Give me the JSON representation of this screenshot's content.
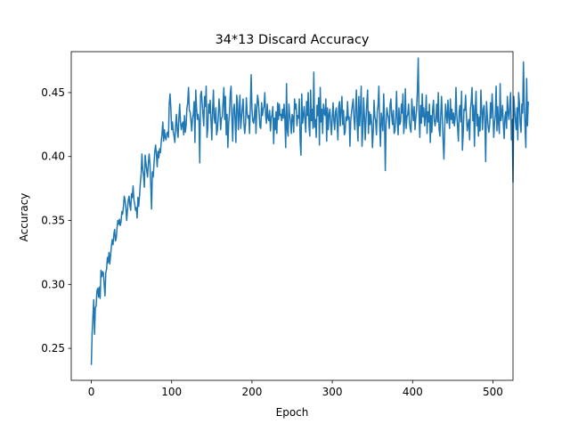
{
  "chart_data": {
    "type": "line",
    "title": "34*13 Discard Accuracy",
    "xlabel": "Epoch",
    "ylabel": "Accuracy",
    "xlim": [
      -25,
      525
    ],
    "ylim": [
      0.225,
      0.482
    ],
    "xticks": [
      "0",
      "100",
      "200",
      "300",
      "400",
      "500"
    ],
    "yticks": [
      "0.25",
      "0.30",
      "0.35",
      "0.40",
      "0.45"
    ],
    "grid": false,
    "legend": "none",
    "line_color": "#1f77b4",
    "series": [
      {
        "x_start": 0,
        "x_step": 1,
        "values": [
          0.237,
          0.262,
          0.275,
          0.288,
          0.261,
          0.282,
          0.283,
          0.295,
          0.297,
          0.29,
          0.298,
          0.289,
          0.311,
          0.306,
          0.31,
          0.309,
          0.3,
          0.291,
          0.309,
          0.312,
          0.321,
          0.317,
          0.325,
          0.316,
          0.323,
          0.33,
          0.335,
          0.331,
          0.339,
          0.343,
          0.334,
          0.336,
          0.344,
          0.35,
          0.347,
          0.351,
          0.346,
          0.349,
          0.357,
          0.355,
          0.361,
          0.369,
          0.366,
          0.36,
          0.35,
          0.358,
          0.366,
          0.369,
          0.362,
          0.358,
          0.371,
          0.368,
          0.377,
          0.366,
          0.363,
          0.358,
          0.36,
          0.352,
          0.368,
          0.361,
          0.369,
          0.379,
          0.386,
          0.402,
          0.39,
          0.385,
          0.376,
          0.401,
          0.395,
          0.389,
          0.384,
          0.395,
          0.402,
          0.394,
          0.378,
          0.359,
          0.388,
          0.384,
          0.394,
          0.404,
          0.409,
          0.402,
          0.392,
          0.404,
          0.399,
          0.406,
          0.403,
          0.411,
          0.418,
          0.427,
          0.412,
          0.421,
          0.415,
          0.413,
          0.418,
          0.419,
          0.415,
          0.441,
          0.449,
          0.438,
          0.421,
          0.427,
          0.419,
          0.416,
          0.411,
          0.425,
          0.433,
          0.42,
          0.415,
          0.43,
          0.441,
          0.427,
          0.421,
          0.425,
          0.427,
          0.417,
          0.432,
          0.419,
          0.424,
          0.438,
          0.442,
          0.454,
          0.436,
          0.435,
          0.428,
          0.42,
          0.43,
          0.433,
          0.443,
          0.411,
          0.452,
          0.438,
          0.429,
          0.433,
          0.428,
          0.395,
          0.448,
          0.451,
          0.442,
          0.433,
          0.424,
          0.447,
          0.439,
          0.455,
          0.415,
          0.422,
          0.441,
          0.434,
          0.444,
          0.428,
          0.413,
          0.436,
          0.452,
          0.43,
          0.426,
          0.438,
          0.417,
          0.421,
          0.43,
          0.445,
          0.437,
          0.421,
          0.43,
          0.431,
          0.442,
          0.454,
          0.429,
          0.447,
          0.417,
          0.433,
          0.407,
          0.426,
          0.434,
          0.449,
          0.455,
          0.43,
          0.412,
          0.437,
          0.441,
          0.429,
          0.411,
          0.448,
          0.442,
          0.421,
          0.434,
          0.448,
          0.422,
          0.43,
          0.438,
          0.445,
          0.426,
          0.418,
          0.425,
          0.446,
          0.434,
          0.43,
          0.432,
          0.418,
          0.439,
          0.464,
          0.437,
          0.428,
          0.426,
          0.431,
          0.441,
          0.418,
          0.437,
          0.448,
          0.443,
          0.433,
          0.423,
          0.422,
          0.442,
          0.432,
          0.437,
          0.439,
          0.45,
          0.432,
          0.426,
          0.441,
          0.43,
          0.428,
          0.436,
          0.42,
          0.43,
          0.433,
          0.439,
          0.41,
          0.43,
          0.421,
          0.435,
          0.418,
          0.442,
          0.429,
          0.441,
          0.432,
          0.433,
          0.428,
          0.437,
          0.43,
          0.441,
          0.429,
          0.407,
          0.457,
          0.421,
          0.416,
          0.441,
          0.432,
          0.428,
          0.418,
          0.433,
          0.431,
          0.419,
          0.445,
          0.437,
          0.441,
          0.424,
          0.432,
          0.43,
          0.445,
          0.412,
          0.401,
          0.449,
          0.426,
          0.432,
          0.439,
          0.428,
          0.419,
          0.443,
          0.432,
          0.45,
          0.424,
          0.416,
          0.452,
          0.428,
          0.437,
          0.422,
          0.466,
          0.423,
          0.429,
          0.415,
          0.44,
          0.432,
          0.446,
          0.409,
          0.454,
          0.427,
          0.437,
          0.418,
          0.441,
          0.434,
          0.432,
          0.445,
          0.412,
          0.438,
          0.421,
          0.433,
          0.437,
          0.426,
          0.417,
          0.431,
          0.442,
          0.428,
          0.421,
          0.435,
          0.438,
          0.426,
          0.413,
          0.439,
          0.443,
          0.424,
          0.436,
          0.447,
          0.425,
          0.436,
          0.417,
          0.419,
          0.431,
          0.428,
          0.443,
          0.429,
          0.431,
          0.408,
          0.428,
          0.435,
          0.44,
          0.445,
          0.43,
          0.421,
          0.437,
          0.452,
          0.425,
          0.412,
          0.447,
          0.424,
          0.436,
          0.455,
          0.408,
          0.42,
          0.446,
          0.432,
          0.413,
          0.429,
          0.442,
          0.452,
          0.418,
          0.435,
          0.425,
          0.433,
          0.426,
          0.407,
          0.42,
          0.444,
          0.431,
          0.428,
          0.417,
          0.435,
          0.44,
          0.455,
          0.424,
          0.408,
          0.434,
          0.428,
          0.42,
          0.449,
          0.429,
          0.389,
          0.425,
          0.438,
          0.433,
          0.43,
          0.422,
          0.441,
          0.445,
          0.432,
          0.425,
          0.436,
          0.418,
          0.42,
          0.43,
          0.451,
          0.428,
          0.417,
          0.438,
          0.425,
          0.427,
          0.441,
          0.434,
          0.449,
          0.418,
          0.427,
          0.453,
          0.422,
          0.431,
          0.433,
          0.441,
          0.428,
          0.422,
          0.419,
          0.445,
          0.435,
          0.428,
          0.439,
          0.421,
          0.43,
          0.437,
          0.452,
          0.477,
          0.433,
          0.415,
          0.44,
          0.426,
          0.449,
          0.431,
          0.438,
          0.424,
          0.432,
          0.448,
          0.418,
          0.435,
          0.427,
          0.441,
          0.411,
          0.432,
          0.419,
          0.437,
          0.444,
          0.428,
          0.424,
          0.43,
          0.441,
          0.427,
          0.45,
          0.421,
          0.416,
          0.431,
          0.447,
          0.432,
          0.412,
          0.398,
          0.422,
          0.441,
          0.433,
          0.426,
          0.444,
          0.431,
          0.422,
          0.445,
          0.429,
          0.437,
          0.426,
          0.434,
          0.424,
          0.43,
          0.454,
          0.433,
          0.423,
          0.412,
          0.435,
          0.44,
          0.427,
          0.451,
          0.405,
          0.418,
          0.437,
          0.436,
          0.448,
          0.432,
          0.42,
          0.425,
          0.429,
          0.413,
          0.437,
          0.443,
          0.454,
          0.428,
          0.44,
          0.408,
          0.436,
          0.451,
          0.424,
          0.433,
          0.416,
          0.431,
          0.42,
          0.452,
          0.437,
          0.421,
          0.437,
          0.44,
          0.427,
          0.396,
          0.443,
          0.432,
          0.424,
          0.419,
          0.425,
          0.442,
          0.43,
          0.449,
          0.436,
          0.415,
          0.426,
          0.432,
          0.455,
          0.42,
          0.439,
          0.426,
          0.418,
          0.457,
          0.428,
          0.433,
          0.44,
          0.425,
          0.414,
          0.431,
          0.435,
          0.422,
          0.447,
          0.434,
          0.429,
          0.44,
          0.45,
          0.413,
          0.429,
          0.38,
          0.447,
          0.437,
          0.428,
          0.421,
          0.438,
          0.413,
          0.45,
          0.442,
          0.426,
          0.419,
          0.441,
          0.434,
          0.474,
          0.44,
          0.423,
          0.407,
          0.461,
          0.424,
          0.443
        ]
      }
    ]
  }
}
